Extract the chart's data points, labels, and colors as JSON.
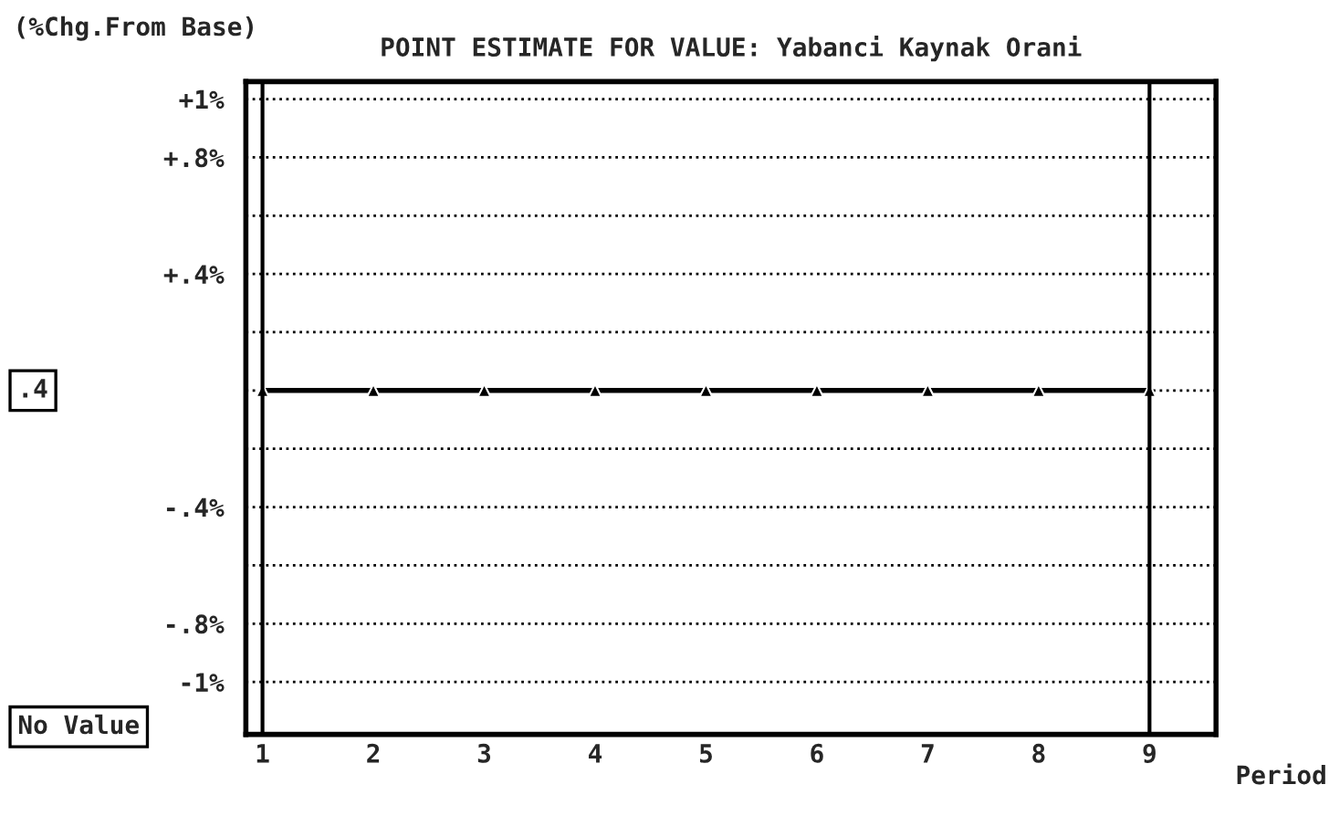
{
  "chart_data": {
    "type": "line",
    "title": "POINT ESTIMATE FOR VALUE: Yabanci Kaynak Orani",
    "ylabel": "(%Chg.From Base)",
    "xlabel": "Period",
    "x": [
      1,
      2,
      3,
      4,
      5,
      6,
      7,
      8,
      9
    ],
    "series": [
      {
        "color": "#000000",
        "values": [
          0,
          0,
          0,
          0,
          0,
          0,
          0,
          0,
          0
        ]
      }
    ],
    "marker": "triangle",
    "line_style": "solid",
    "grid": "y",
    "legend": false,
    "xlim": [
      0.85,
      9.6
    ],
    "xticks": [
      1,
      2,
      3,
      4,
      5,
      6,
      7,
      8,
      9
    ],
    "ylim": [
      -1.18,
      1.06
    ],
    "yticks": [
      {
        "value": 1.0,
        "label": "+1%"
      },
      {
        "value": 0.8,
        "label": "+.8%"
      },
      {
        "value": 0.6,
        "label": null
      },
      {
        "value": 0.4,
        "label": "+.4%"
      },
      {
        "value": 0.2,
        "label": null
      },
      {
        "value": 0,
        "label": null
      },
      {
        "value": -0.2,
        "label": null
      },
      {
        "value": -0.4,
        "label": "-.4%"
      },
      {
        "value": -0.6,
        "label": null
      },
      {
        "value": -0.8,
        "label": "-.8%"
      },
      {
        "value": -1.0,
        "label": "-1%"
      }
    ],
    "ref_lines": [
      {
        "axis": "x",
        "value": 1,
        "color": "#000000",
        "line_style": "solid"
      },
      {
        "axis": "x",
        "value": 9,
        "color": "#000000",
        "line_style": "solid"
      }
    ],
    "annotations": [
      ".4",
      "No Value"
    ]
  }
}
